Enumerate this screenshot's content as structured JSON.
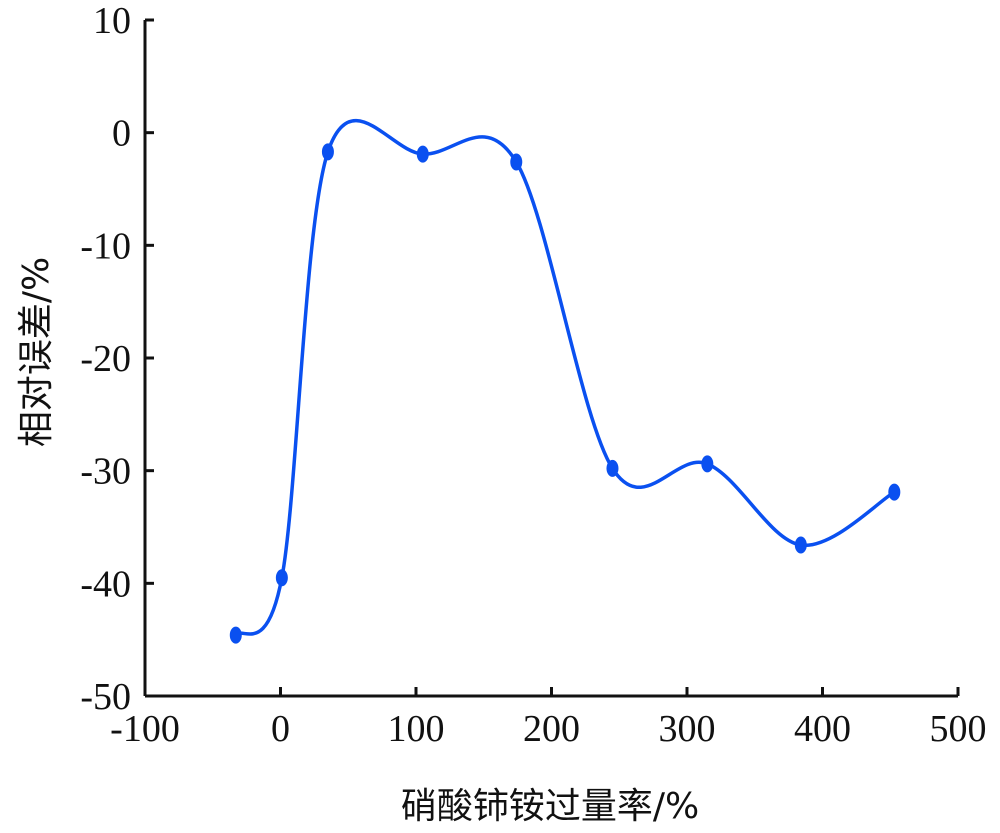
{
  "chart_data": {
    "type": "line",
    "xlabel": "硝酸铈铵过量率/%",
    "ylabel": "相对误差/%",
    "xlim": [
      -100,
      500
    ],
    "ylim": [
      -50,
      10
    ],
    "x_ticks": [
      "-100",
      "0",
      "100",
      "200",
      "300",
      "400",
      "500"
    ],
    "y_ticks": [
      "10",
      "0",
      "-10",
      "-20",
      "-30",
      "-40",
      "-50"
    ],
    "grid": false,
    "legend": "none",
    "series": [
      {
        "color": "#0a50f0",
        "x": [
          -33,
          1,
          35,
          105,
          174,
          245,
          315,
          384,
          453
        ],
        "y": [
          -44.6,
          -39.5,
          -1.7,
          -1.9,
          -2.6,
          -29.8,
          -29.4,
          -36.6,
          -31.9
        ]
      }
    ]
  }
}
